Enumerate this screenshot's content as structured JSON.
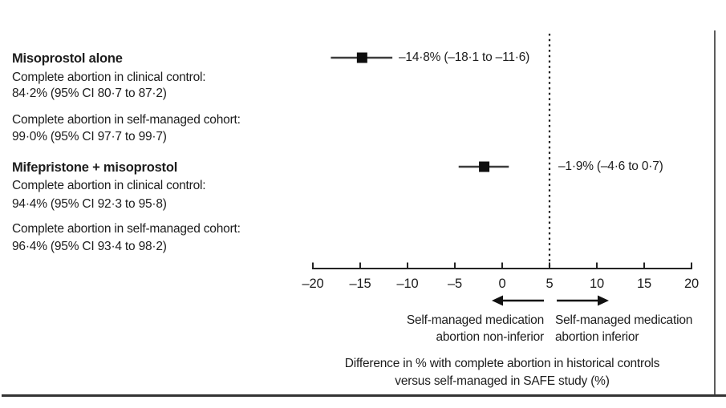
{
  "figure": {
    "background": "#ffffff",
    "text_color": "#1d1d1d",
    "groups": [
      {
        "name": "Misoprostol alone",
        "lines": [
          "Complete abortion in clinical control:",
          "84·2% (95% CI 80·7 to 87·2)",
          "Complete abortion in self-managed cohort:",
          "99·0% (95% CI 97·7 to 99·7)"
        ]
      },
      {
        "name": "Mifepristone + misoprostol",
        "lines": [
          "Complete abortion in clinical control:",
          "94·4% (95% CI 92·3 to 95·8)",
          "Complete abortion in self-managed cohort:",
          "96·4% (95% CI 93·4 to 98·2)"
        ]
      }
    ]
  },
  "chart_data": {
    "type": "scatter",
    "subtype": "forest-plot",
    "title": "",
    "ylabel": "",
    "xlabel": "Difference in % with complete abortion in historical controls versus self-managed in SAFE study (%)",
    "xlabel_lines": [
      "Difference in % with complete abortion in historical controls",
      "versus self-managed in SAFE study (%)"
    ],
    "xlim": [
      -20,
      20
    ],
    "xticks": [
      -20,
      -15,
      -10,
      -5,
      0,
      5,
      10,
      15,
      20
    ],
    "xtick_labels": [
      "–20",
      "–15",
      "–10",
      "–5",
      "0",
      "5",
      "10",
      "15",
      "20"
    ],
    "grid": false,
    "reference_line": {
      "x": 5,
      "style": "dotted"
    },
    "series": [
      {
        "name": "Misoprostol alone",
        "estimate": -14.8,
        "ci_low": -18.1,
        "ci_high": -11.6,
        "label": "–14·8% (–18·1 to –11·6)"
      },
      {
        "name": "Mifepristone + misoprostol",
        "estimate": -1.9,
        "ci_low": -4.6,
        "ci_high": 0.7,
        "label": "–1·9% (–4·6 to 0·7)"
      }
    ],
    "marker": {
      "shape": "square",
      "color": "#0e0e0e",
      "size": 13
    },
    "ci_color": "#3c3c3c",
    "axis_color": "#242424",
    "direction_left": [
      "Self-managed medication",
      "abortion non-inferior"
    ],
    "direction_right": [
      "Self-managed medication",
      "abortion inferior"
    ]
  }
}
